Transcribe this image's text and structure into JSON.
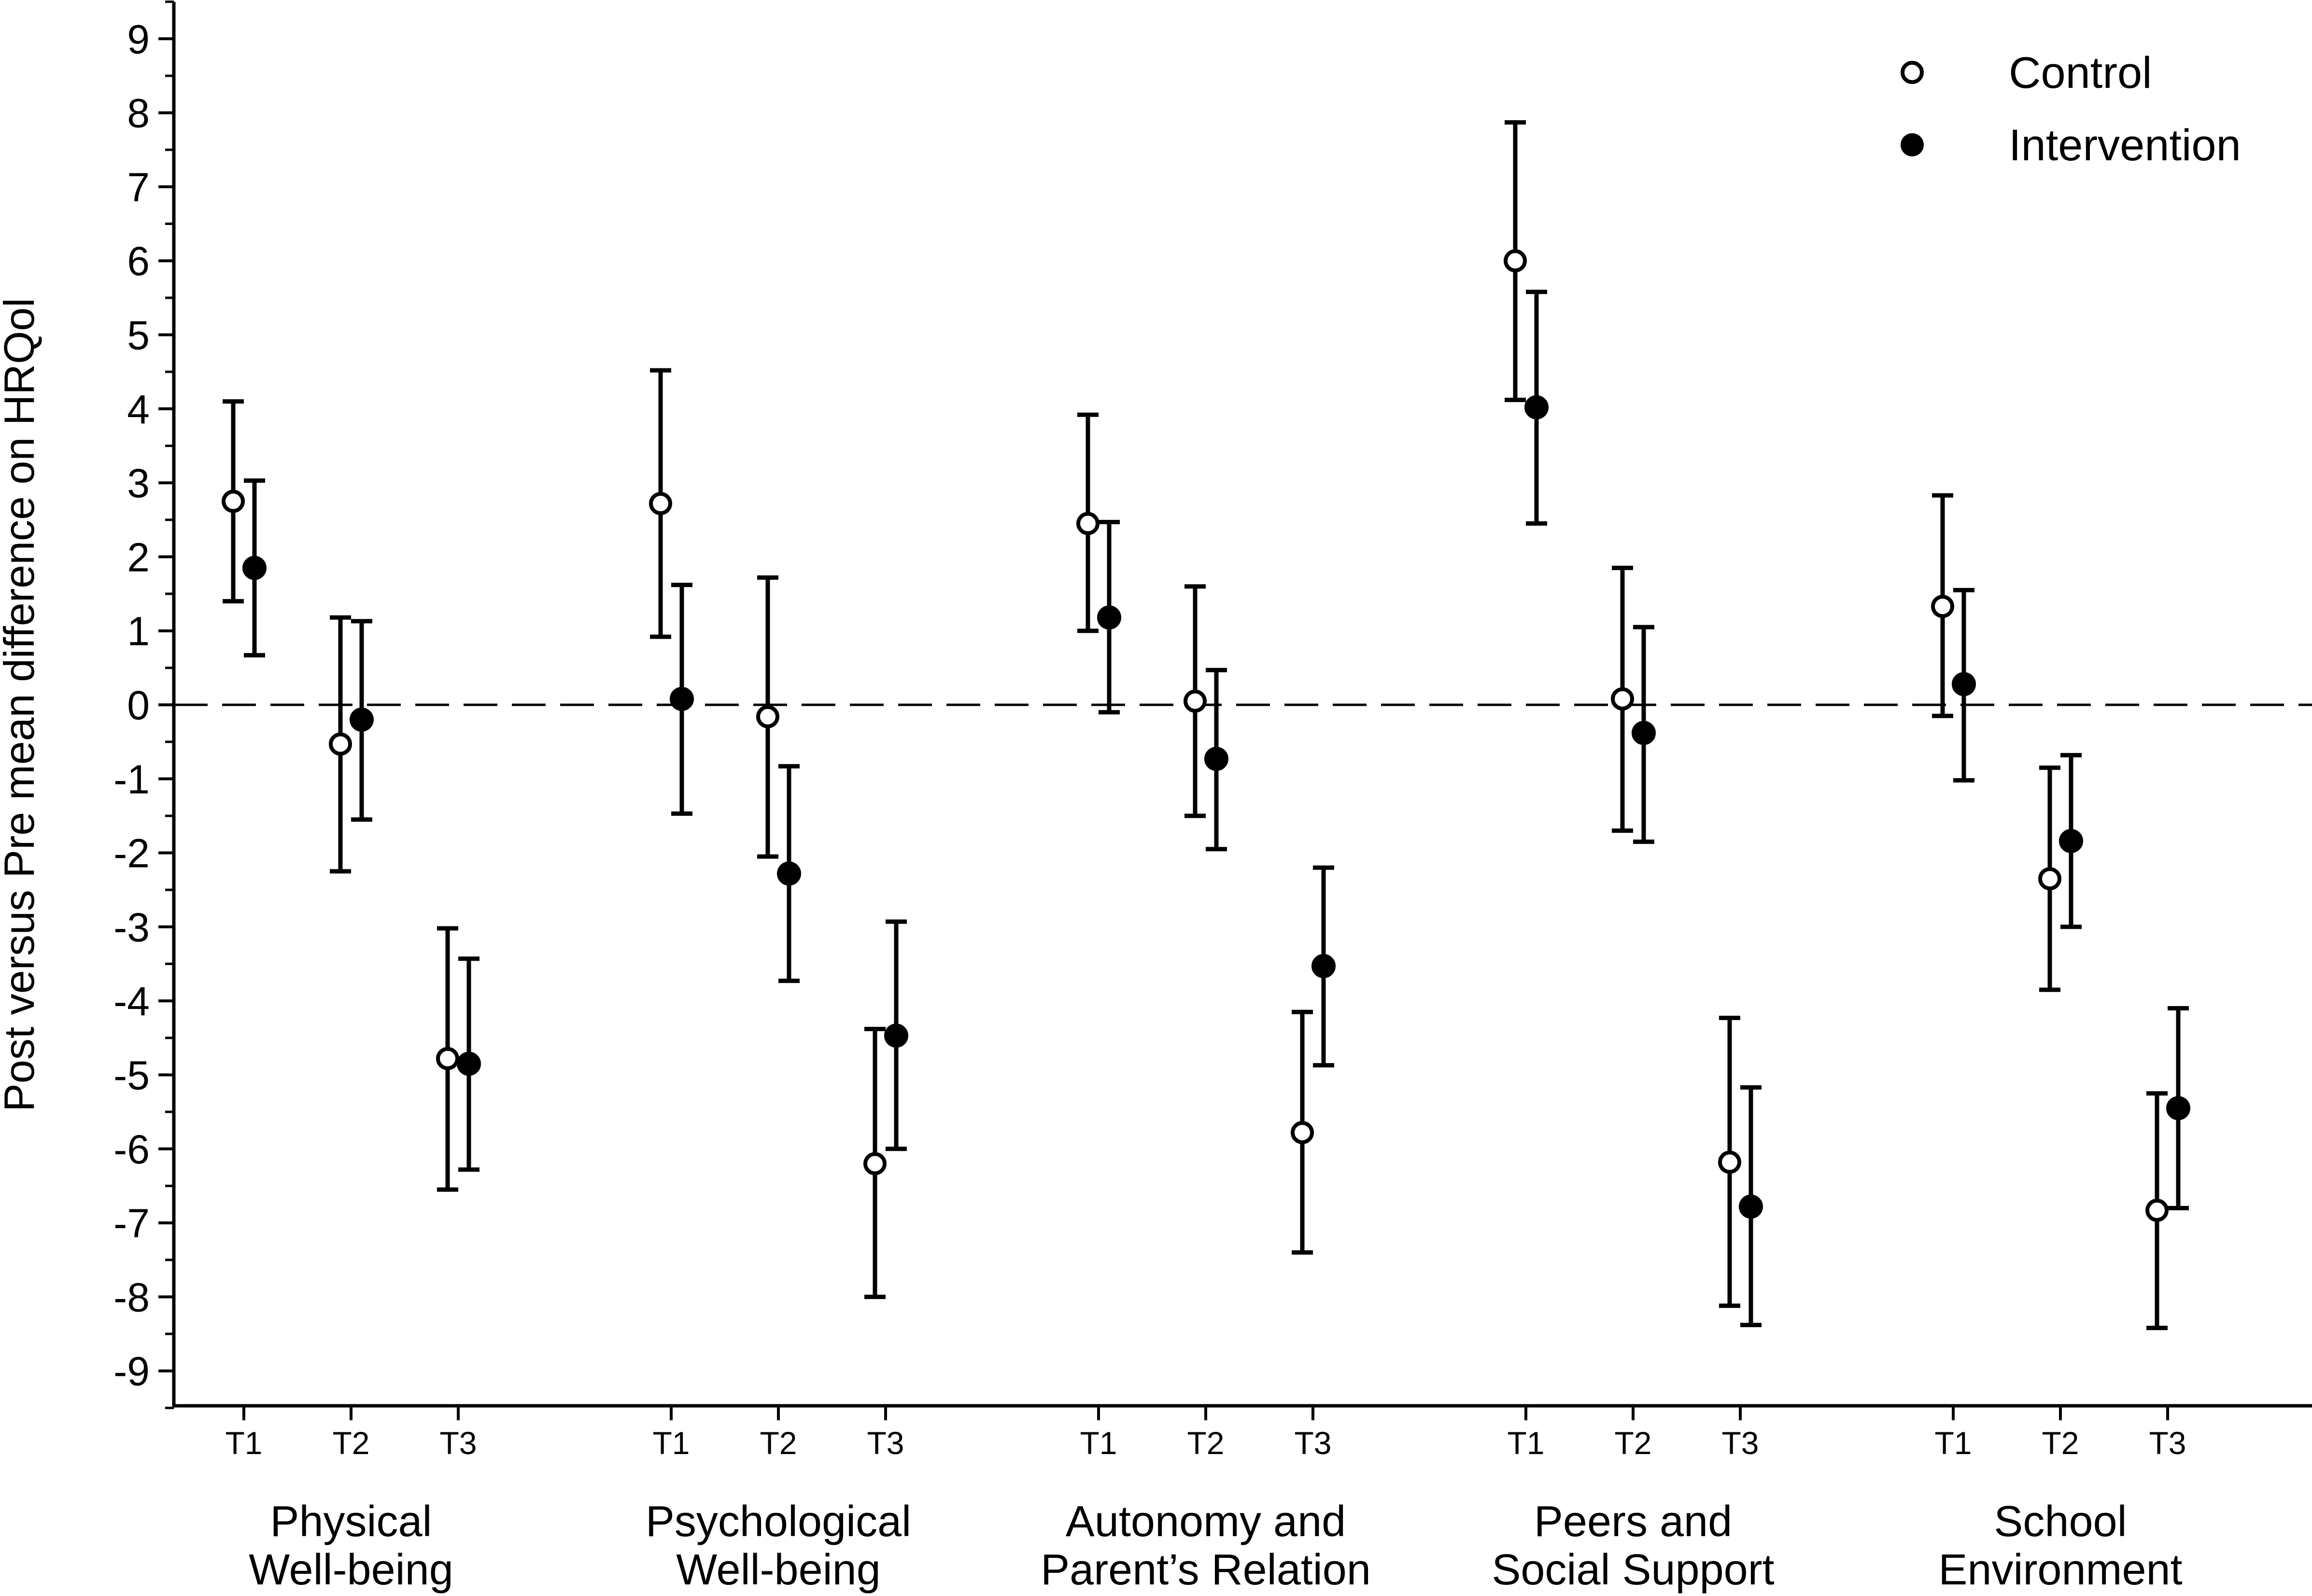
{
  "chart_data": {
    "type": "scatter",
    "title": "",
    "xlabel": "",
    "ylabel": "Post versus Pre mean difference on HRQol",
    "ylim": [
      -9.5,
      9.5
    ],
    "yticks": [
      -9,
      -8,
      -7,
      -6,
      -5,
      -4,
      -3,
      -2,
      -1,
      0,
      1,
      2,
      3,
      4,
      5,
      6,
      7,
      8,
      9
    ],
    "reference_line": 0,
    "legend_position": "top-right",
    "time_labels": [
      "T1",
      "T2",
      "T3"
    ],
    "groups": [
      [
        "Physical",
        "Well-being"
      ],
      [
        "Psychological",
        "Well-being"
      ],
      [
        "Autonomy and",
        "Parent’s Relation"
      ],
      [
        "Peers and",
        "Social Support"
      ],
      [
        "School",
        "Environment"
      ]
    ],
    "series": [
      {
        "name": "Control",
        "marker": "open-circle",
        "values": [
          [
            2.75,
            -0.53,
            -4.78
          ],
          [
            2.72,
            -0.16,
            -6.2
          ],
          [
            2.45,
            0.05,
            -5.78
          ],
          [
            6.0,
            0.08,
            -6.18
          ],
          [
            1.33,
            -2.35,
            -6.83
          ]
        ],
        "lower": [
          [
            1.4,
            -2.25,
            -6.55
          ],
          [
            0.92,
            -2.05,
            -8.0
          ],
          [
            1.0,
            -1.5,
            -7.4
          ],
          [
            4.12,
            -1.7,
            -8.12
          ],
          [
            -0.15,
            -3.85,
            -8.42
          ]
        ],
        "upper": [
          [
            4.1,
            1.18,
            -3.02
          ],
          [
            4.52,
            1.72,
            -4.38
          ],
          [
            3.92,
            1.6,
            -4.15
          ],
          [
            7.87,
            1.85,
            -4.23
          ],
          [
            2.83,
            -0.85,
            -5.25
          ]
        ]
      },
      {
        "name": "Intervention",
        "marker": "filled-circle",
        "values": [
          [
            1.85,
            -0.2,
            -4.85
          ],
          [
            0.08,
            -2.28,
            -4.47
          ],
          [
            1.18,
            -0.73,
            -3.53
          ],
          [
            4.02,
            -0.38,
            -6.78
          ],
          [
            0.28,
            -1.84,
            -5.45
          ]
        ],
        "lower": [
          [
            0.67,
            -1.55,
            -6.28
          ],
          [
            -1.47,
            -3.73,
            -6.0
          ],
          [
            -0.1,
            -1.95,
            -4.87
          ],
          [
            2.45,
            -1.85,
            -8.38
          ],
          [
            -1.02,
            -3.0,
            -6.8
          ]
        ],
        "upper": [
          [
            3.03,
            1.13,
            -3.43
          ],
          [
            1.62,
            -0.83,
            -2.93
          ],
          [
            2.47,
            0.47,
            -2.2
          ],
          [
            5.58,
            1.05,
            -5.17
          ],
          [
            1.55,
            -0.68,
            -4.1
          ]
        ]
      }
    ]
  }
}
